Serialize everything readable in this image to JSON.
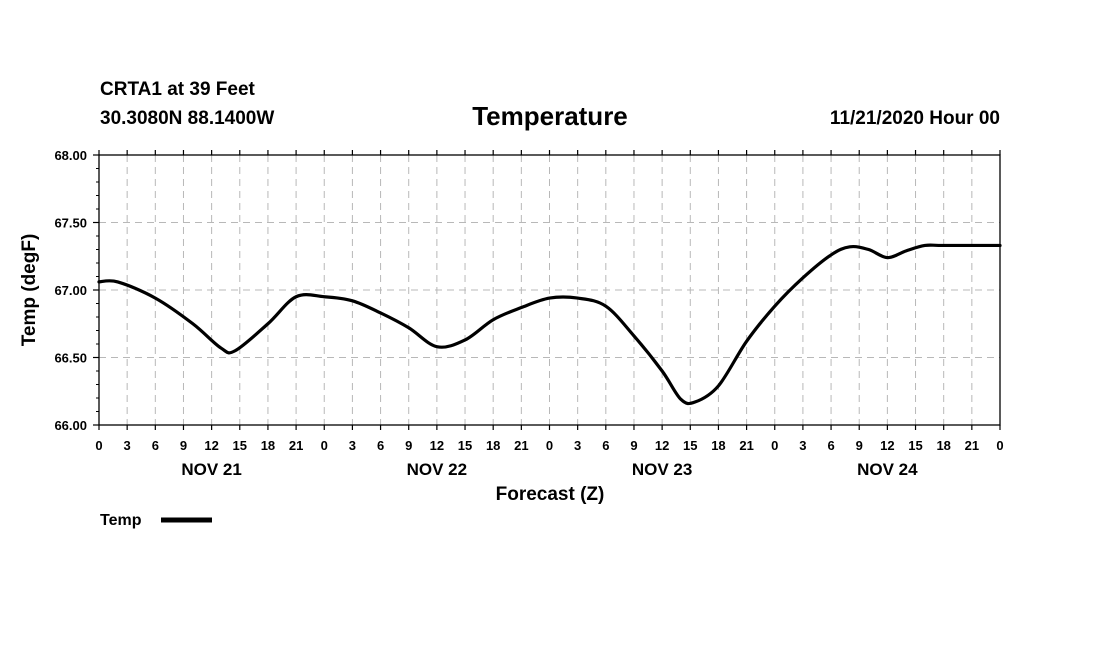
{
  "header": {
    "station": "CRTA1 at 39 Feet",
    "location": "30.3080N 88.1400W",
    "run": "11/21/2020 Hour 00"
  },
  "chart_data": {
    "type": "line",
    "title": "Temperature",
    "xlabel": "Forecast (Z)",
    "ylabel": "Temp (degF)",
    "ylim": [
      66.0,
      68.0
    ],
    "yticks": [
      "66.00",
      "66.50",
      "67.00",
      "67.50",
      "68.00"
    ],
    "xlim_hours": [
      0,
      96
    ],
    "x_tick_labels": [
      "0",
      "3",
      "6",
      "9",
      "12",
      "15",
      "18",
      "21",
      "0",
      "3",
      "6",
      "9",
      "12",
      "15",
      "18",
      "21",
      "0",
      "3",
      "6",
      "9",
      "12",
      "15",
      "18",
      "21",
      "0",
      "3",
      "6",
      "9",
      "12",
      "15",
      "18",
      "21",
      "0"
    ],
    "day_labels": [
      "NOV 21",
      "NOV 22",
      "NOV 23",
      "NOV 24"
    ],
    "grid": true,
    "legend_position": "bottom-left",
    "series": [
      {
        "name": "Temp",
        "color": "#000000",
        "points": [
          {
            "x": 0,
            "y": 67.06
          },
          {
            "x": 2,
            "y": 67.06
          },
          {
            "x": 6,
            "y": 66.94
          },
          {
            "x": 10,
            "y": 66.75
          },
          {
            "x": 13,
            "y": 66.57
          },
          {
            "x": 14.5,
            "y": 66.55
          },
          {
            "x": 18,
            "y": 66.75
          },
          {
            "x": 21,
            "y": 66.95
          },
          {
            "x": 24,
            "y": 66.95
          },
          {
            "x": 27,
            "y": 66.92
          },
          {
            "x": 30,
            "y": 66.83
          },
          {
            "x": 33,
            "y": 66.72
          },
          {
            "x": 36,
            "y": 66.58
          },
          {
            "x": 39,
            "y": 66.63
          },
          {
            "x": 42,
            "y": 66.78
          },
          {
            "x": 45,
            "y": 66.87
          },
          {
            "x": 48,
            "y": 66.94
          },
          {
            "x": 51,
            "y": 66.94
          },
          {
            "x": 54,
            "y": 66.88
          },
          {
            "x": 57,
            "y": 66.66
          },
          {
            "x": 60,
            "y": 66.4
          },
          {
            "x": 62,
            "y": 66.19
          },
          {
            "x": 63.5,
            "y": 66.17
          },
          {
            "x": 66,
            "y": 66.29
          },
          {
            "x": 69,
            "y": 66.62
          },
          {
            "x": 72,
            "y": 66.88
          },
          {
            "x": 75,
            "y": 67.09
          },
          {
            "x": 78,
            "y": 67.26
          },
          {
            "x": 80,
            "y": 67.32
          },
          {
            "x": 82,
            "y": 67.3
          },
          {
            "x": 84,
            "y": 67.24
          },
          {
            "x": 86,
            "y": 67.29
          },
          {
            "x": 88,
            "y": 67.33
          },
          {
            "x": 90,
            "y": 67.33
          },
          {
            "x": 96,
            "y": 67.33
          }
        ]
      }
    ]
  }
}
